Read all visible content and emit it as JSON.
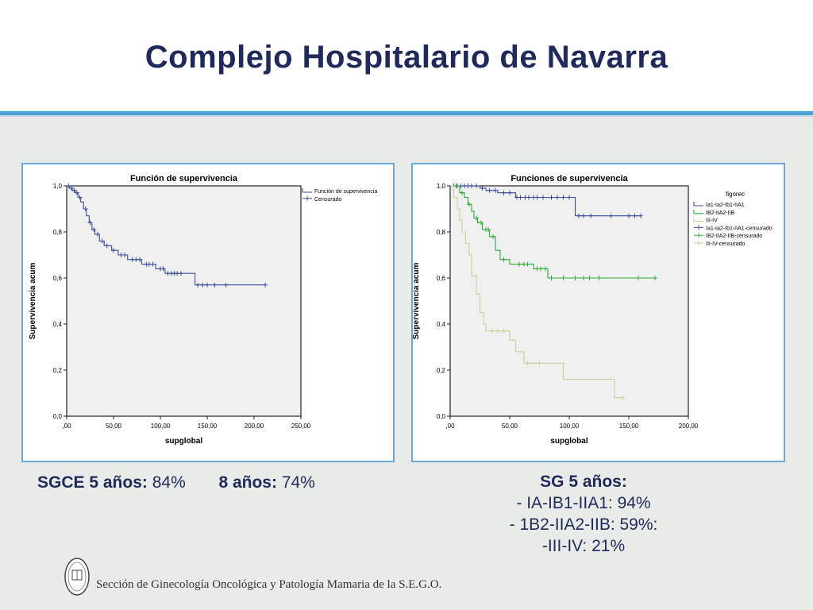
{
  "title": "Complejo Hospitalario de Navarra",
  "colors": {
    "title": "#1f2a5a",
    "accent": "#4aa3d3",
    "series_blue": "#3b4f9c",
    "series_green": "#2eaa3a",
    "series_beige": "#d4cc9a"
  },
  "left_caption": {
    "label1": "SGCE 5 años:",
    "value1": "84%",
    "label2": "8 años:",
    "value2": "74%"
  },
  "right_caption": {
    "heading": "SG 5 años:",
    "lines": [
      "- IA-IB1-IIA1: 94%",
      "- 1B2-IIA2-IIB: 59%:",
      "-III-IV: 21%"
    ]
  },
  "footer": {
    "text": "Sección de Ginecología Oncológica y Patología Mamaria de la S.E.G.O.",
    "logo_letters": "S.E.G.O."
  },
  "chart_data": [
    {
      "type": "line",
      "title": "Función de supervivencia",
      "xlabel": "supglobal",
      "ylabel": "Supervivencia acum",
      "xlim": [
        0,
        250
      ],
      "ylim": [
        0,
        1
      ],
      "xticks": [
        ",00",
        "50,00",
        "100,00",
        "150,00",
        "200,00",
        "250,00"
      ],
      "yticks": [
        "0,0",
        "0,2",
        "0,4",
        "0,6",
        "0,8",
        "1,0"
      ],
      "legend": [
        "Función de supervivencia",
        "Censurado"
      ],
      "legend_position": "top-right",
      "series": [
        {
          "name": "Función de supervivencia",
          "color": "#3b4f9c",
          "steps": [
            [
              0,
              1.0
            ],
            [
              3,
              0.99
            ],
            [
              6,
              0.98
            ],
            [
              9,
              0.97
            ],
            [
              12,
              0.95
            ],
            [
              15,
              0.93
            ],
            [
              18,
              0.9
            ],
            [
              21,
              0.87
            ],
            [
              24,
              0.84
            ],
            [
              27,
              0.81
            ],
            [
              30,
              0.79
            ],
            [
              35,
              0.76
            ],
            [
              40,
              0.74
            ],
            [
              48,
              0.72
            ],
            [
              55,
              0.7
            ],
            [
              65,
              0.68
            ],
            [
              80,
              0.66
            ],
            [
              95,
              0.64
            ],
            [
              105,
              0.62
            ],
            [
              137,
              0.57
            ],
            [
              212,
              0.57
            ]
          ],
          "censored": [
            [
              2,
              1.0
            ],
            [
              5,
              0.99
            ],
            [
              8,
              0.98
            ],
            [
              11,
              0.97
            ],
            [
              14,
              0.95
            ],
            [
              20,
              0.9
            ],
            [
              25,
              0.84
            ],
            [
              29,
              0.81
            ],
            [
              33,
              0.79
            ],
            [
              38,
              0.76
            ],
            [
              43,
              0.74
            ],
            [
              50,
              0.72
            ],
            [
              58,
              0.7
            ],
            [
              62,
              0.7
            ],
            [
              70,
              0.68
            ],
            [
              74,
              0.68
            ],
            [
              78,
              0.68
            ],
            [
              85,
              0.66
            ],
            [
              88,
              0.66
            ],
            [
              92,
              0.66
            ],
            [
              100,
              0.64
            ],
            [
              103,
              0.64
            ],
            [
              108,
              0.62
            ],
            [
              112,
              0.62
            ],
            [
              115,
              0.62
            ],
            [
              118,
              0.62
            ],
            [
              122,
              0.62
            ],
            [
              140,
              0.57
            ],
            [
              145,
              0.57
            ],
            [
              150,
              0.57
            ],
            [
              158,
              0.57
            ],
            [
              170,
              0.57
            ],
            [
              212,
              0.57
            ]
          ]
        }
      ]
    },
    {
      "type": "line",
      "title": "Funciones de supervivencia",
      "xlabel": "supglobal",
      "ylabel": "Supervivencia acum",
      "xlim": [
        0,
        200
      ],
      "ylim": [
        0,
        1
      ],
      "xticks": [
        ",00",
        "50,00",
        "100,00",
        "150,00",
        "200,00"
      ],
      "yticks": [
        "0,0",
        "0,2",
        "0,4",
        "0,6",
        "0,8",
        "1,0"
      ],
      "legend_title": "figorec",
      "legend": [
        "Ia1-Ia2-Ib1-IIA1",
        "IB2-IIA2-IIB",
        "III-IV",
        "Ia1-Ia2-Ib1-IIA1-censurado",
        "IB2-IIA2-IIB-censurado",
        "III-IV-censurado"
      ],
      "legend_position": "top-right",
      "series": [
        {
          "name": "Ia1-Ia2-Ib1-IIA1",
          "color": "#3b4f9c",
          "steps": [
            [
              0,
              1.0
            ],
            [
              25,
              0.99
            ],
            [
              30,
              0.98
            ],
            [
              40,
              0.97
            ],
            [
              55,
              0.95
            ],
            [
              105,
              0.87
            ],
            [
              160,
              0.87
            ]
          ],
          "censored": [
            [
              3,
              1.0
            ],
            [
              6,
              1.0
            ],
            [
              9,
              1.0
            ],
            [
              12,
              1.0
            ],
            [
              15,
              1.0
            ],
            [
              18,
              1.0
            ],
            [
              22,
              1.0
            ],
            [
              27,
              0.99
            ],
            [
              33,
              0.98
            ],
            [
              38,
              0.98
            ],
            [
              45,
              0.97
            ],
            [
              50,
              0.97
            ],
            [
              56,
              0.95
            ],
            [
              59,
              0.95
            ],
            [
              63,
              0.95
            ],
            [
              66,
              0.95
            ],
            [
              70,
              0.95
            ],
            [
              73,
              0.95
            ],
            [
              78,
              0.95
            ],
            [
              85,
              0.95
            ],
            [
              90,
              0.95
            ],
            [
              95,
              0.95
            ],
            [
              100,
              0.95
            ],
            [
              108,
              0.87
            ],
            [
              112,
              0.87
            ],
            [
              118,
              0.87
            ],
            [
              135,
              0.87
            ],
            [
              150,
              0.87
            ],
            [
              155,
              0.87
            ],
            [
              160,
              0.87
            ]
          ]
        },
        {
          "name": "IB2-IIA2-IIB",
          "color": "#2eaa3a",
          "steps": [
            [
              0,
              1.0
            ],
            [
              8,
              0.97
            ],
            [
              12,
              0.95
            ],
            [
              15,
              0.92
            ],
            [
              18,
              0.89
            ],
            [
              20,
              0.86
            ],
            [
              23,
              0.84
            ],
            [
              27,
              0.81
            ],
            [
              33,
              0.78
            ],
            [
              38,
              0.72
            ],
            [
              42,
              0.68
            ],
            [
              50,
              0.66
            ],
            [
              70,
              0.64
            ],
            [
              82,
              0.6
            ],
            [
              172,
              0.6
            ]
          ],
          "censored": [
            [
              5,
              1.0
            ],
            [
              10,
              0.97
            ],
            [
              16,
              0.92
            ],
            [
              22,
              0.86
            ],
            [
              26,
              0.84
            ],
            [
              30,
              0.81
            ],
            [
              32,
              0.81
            ],
            [
              36,
              0.78
            ],
            [
              45,
              0.68
            ],
            [
              58,
              0.66
            ],
            [
              62,
              0.66
            ],
            [
              65,
              0.66
            ],
            [
              73,
              0.64
            ],
            [
              76,
              0.64
            ],
            [
              80,
              0.64
            ],
            [
              85,
              0.6
            ],
            [
              95,
              0.6
            ],
            [
              105,
              0.6
            ],
            [
              112,
              0.6
            ],
            [
              117,
              0.6
            ],
            [
              125,
              0.6
            ],
            [
              158,
              0.6
            ],
            [
              172,
              0.6
            ]
          ]
        },
        {
          "name": "III-IV",
          "color": "#d4cc9a",
          "steps": [
            [
              0,
              1.0
            ],
            [
              3,
              0.95
            ],
            [
              6,
              0.9
            ],
            [
              8,
              0.85
            ],
            [
              10,
              0.8
            ],
            [
              13,
              0.75
            ],
            [
              16,
              0.7
            ],
            [
              18,
              0.61
            ],
            [
              22,
              0.53
            ],
            [
              25,
              0.45
            ],
            [
              28,
              0.4
            ],
            [
              30,
              0.37
            ],
            [
              50,
              0.33
            ],
            [
              55,
              0.28
            ],
            [
              62,
              0.23
            ],
            [
              95,
              0.16
            ],
            [
              138,
              0.08
            ],
            [
              145,
              0.08
            ]
          ],
          "censored": [
            [
              35,
              0.37
            ],
            [
              40,
              0.37
            ],
            [
              45,
              0.37
            ],
            [
              65,
              0.23
            ],
            [
              75,
              0.23
            ],
            [
              145,
              0.08
            ]
          ]
        }
      ]
    }
  ]
}
